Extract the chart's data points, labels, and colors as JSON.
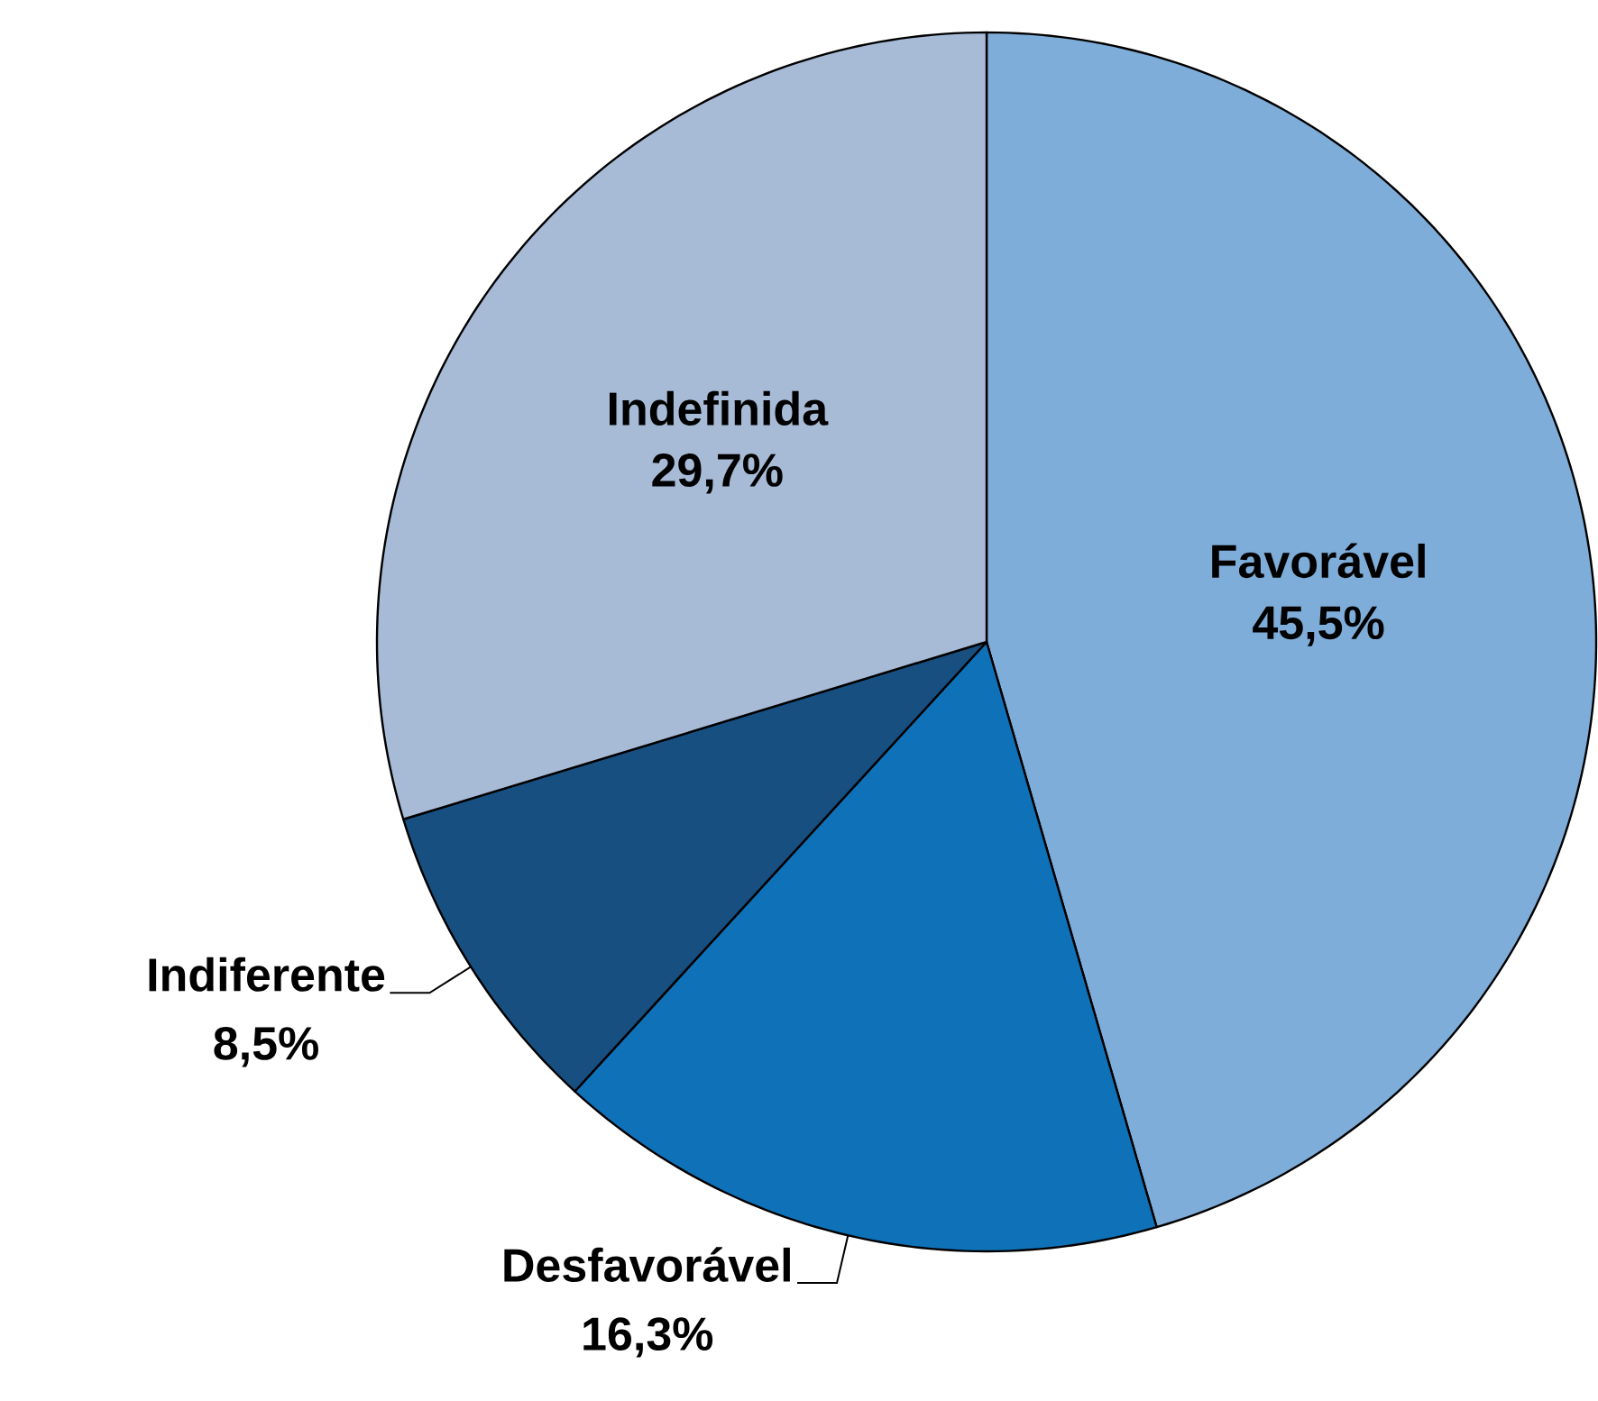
{
  "chart_data": {
    "type": "pie",
    "categories": [
      "Favorável",
      "Desfavorável",
      "Indiferente",
      "Indefinida"
    ],
    "values": [
      45.5,
      16.3,
      8.5,
      29.7
    ],
    "value_labels": [
      "45,5%",
      "16,3%",
      "8,5%",
      "29,7%"
    ],
    "colors": [
      "#7fadd9",
      "#0f72b9",
      "#174f80",
      "#a7bad6"
    ]
  }
}
